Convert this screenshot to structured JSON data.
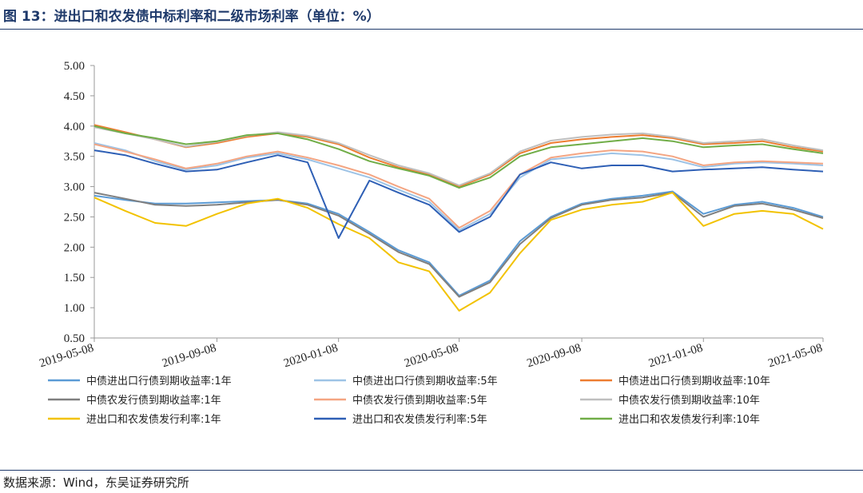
{
  "figure": {
    "title": "图 13：进出口和农发债中标利率和二级市场利率（单位：%）",
    "source": "数据来源：Wind，东吴证券研究所"
  },
  "chart_data": {
    "type": "line",
    "title": "图 13：进出口和农发债中标利率和二级市场利率（单位：%）",
    "unit": "%",
    "xlabel": "",
    "ylabel": "",
    "x_ticks": [
      "2019-05-08",
      "2019-09-08",
      "2020-01-08",
      "2020-05-08",
      "2020-09-08",
      "2021-01-08",
      "2021-05-08"
    ],
    "xlim": [
      "2019-05-08",
      "2021-05-08"
    ],
    "ylim": [
      0.5,
      5.0
    ],
    "y_ticks": [
      "0.50",
      "1.00",
      "1.50",
      "2.00",
      "2.50",
      "3.00",
      "3.50",
      "4.00",
      "4.50",
      "5.00"
    ],
    "grid": false,
    "legend_position": "bottom",
    "x": [
      "2019-05-08",
      "2019-06-08",
      "2019-07-08",
      "2019-08-08",
      "2019-09-08",
      "2019-10-08",
      "2019-11-08",
      "2019-12-08",
      "2020-01-08",
      "2020-02-08",
      "2020-03-08",
      "2020-04-08",
      "2020-05-08",
      "2020-06-08",
      "2020-07-08",
      "2020-08-08",
      "2020-09-08",
      "2020-10-08",
      "2020-11-08",
      "2020-12-08",
      "2021-01-08",
      "2021-02-08",
      "2021-03-08",
      "2021-04-08",
      "2021-05-08"
    ],
    "series": [
      {
        "name": "中债进出口行债到期收益率:1年",
        "color": "#5b9bd5",
        "values": [
          2.85,
          2.78,
          2.72,
          2.72,
          2.74,
          2.76,
          2.78,
          2.72,
          2.55,
          2.25,
          1.95,
          1.75,
          1.2,
          1.45,
          2.1,
          2.5,
          2.72,
          2.8,
          2.85,
          2.92,
          2.55,
          2.7,
          2.75,
          2.65,
          2.5
        ]
      },
      {
        "name": "中债进出口行债到期收益率:5年",
        "color": "#9dc3e6",
        "values": [
          3.72,
          3.6,
          3.42,
          3.28,
          3.35,
          3.48,
          3.55,
          3.45,
          3.3,
          3.15,
          2.95,
          2.75,
          2.28,
          2.55,
          3.15,
          3.45,
          3.5,
          3.55,
          3.52,
          3.45,
          3.32,
          3.38,
          3.4,
          3.38,
          3.35
        ]
      },
      {
        "name": "中债进出口行债到期收益率:10年",
        "color": "#ed7d31",
        "values": [
          4.02,
          3.9,
          3.78,
          3.65,
          3.72,
          3.82,
          3.88,
          3.82,
          3.7,
          3.48,
          3.32,
          3.2,
          3.0,
          3.2,
          3.55,
          3.72,
          3.78,
          3.82,
          3.85,
          3.8,
          3.7,
          3.72,
          3.75,
          3.65,
          3.58
        ]
      },
      {
        "name": "中债农发行债到期收益率:1年",
        "color": "#7f7f7f",
        "values": [
          2.9,
          2.8,
          2.7,
          2.68,
          2.7,
          2.74,
          2.78,
          2.7,
          2.52,
          2.22,
          1.92,
          1.72,
          1.18,
          1.42,
          2.05,
          2.48,
          2.7,
          2.78,
          2.82,
          2.9,
          2.5,
          2.68,
          2.72,
          2.62,
          2.48
        ]
      },
      {
        "name": "中债农发行债到期收益率:5年",
        "color": "#f4a582",
        "values": [
          3.7,
          3.58,
          3.45,
          3.3,
          3.38,
          3.5,
          3.58,
          3.48,
          3.35,
          3.2,
          3.0,
          2.8,
          2.32,
          2.6,
          3.2,
          3.48,
          3.55,
          3.6,
          3.58,
          3.5,
          3.35,
          3.4,
          3.42,
          3.4,
          3.38
        ]
      },
      {
        "name": "中债农发行债到期收益率:10年",
        "color": "#bfbfbf",
        "values": [
          3.98,
          3.88,
          3.78,
          3.66,
          3.74,
          3.84,
          3.9,
          3.84,
          3.72,
          3.52,
          3.35,
          3.22,
          3.02,
          3.22,
          3.58,
          3.76,
          3.82,
          3.86,
          3.88,
          3.82,
          3.72,
          3.75,
          3.78,
          3.68,
          3.6
        ]
      },
      {
        "name": "进出口和农发债发行利率:1年",
        "color": "#f2c200",
        "values": [
          2.82,
          2.6,
          2.4,
          2.35,
          2.55,
          2.72,
          2.8,
          2.65,
          2.38,
          2.15,
          1.75,
          1.6,
          0.95,
          1.25,
          1.9,
          2.45,
          2.62,
          2.7,
          2.75,
          2.9,
          2.35,
          2.55,
          2.6,
          2.55,
          2.3
        ]
      },
      {
        "name": "进出口和农发债发行利率:5年",
        "color": "#2e5fb5",
        "values": [
          3.6,
          3.52,
          3.38,
          3.25,
          3.28,
          3.4,
          3.52,
          3.4,
          2.15,
          3.1,
          2.9,
          2.7,
          2.25,
          2.5,
          3.2,
          3.4,
          3.3,
          3.35,
          3.35,
          3.25,
          3.28,
          3.3,
          3.32,
          3.28,
          3.25
        ]
      },
      {
        "name": "进出口和农发债发行利率:10年",
        "color": "#70ad47",
        "values": [
          4.0,
          3.88,
          3.8,
          3.7,
          3.75,
          3.85,
          3.88,
          3.78,
          3.62,
          3.42,
          3.3,
          3.18,
          2.98,
          3.15,
          3.5,
          3.65,
          3.7,
          3.75,
          3.8,
          3.75,
          3.65,
          3.68,
          3.7,
          3.62,
          3.55
        ]
      }
    ]
  }
}
